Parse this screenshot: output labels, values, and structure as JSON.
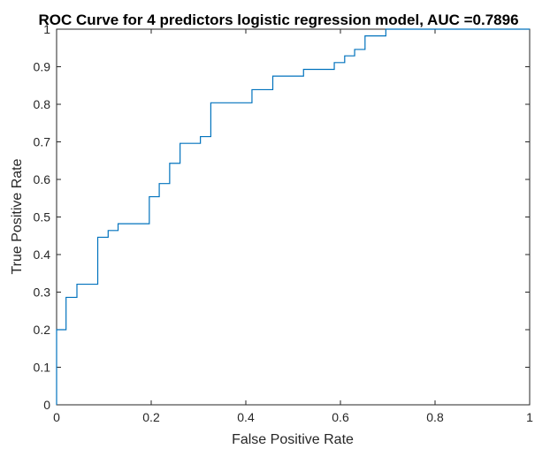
{
  "chart_data": {
    "type": "line",
    "title": "ROC Curve for 4 predictors logistic regression model, AUC =0.7896",
    "xlabel": "False Positive Rate",
    "ylabel": "True Positive Rate",
    "xlim": [
      0,
      1
    ],
    "ylim": [
      0,
      1
    ],
    "x_ticks": [
      "0",
      "0.2",
      "0.4",
      "0.6",
      "0.8",
      "1"
    ],
    "y_ticks": [
      "0",
      "0.1",
      "0.2",
      "0.3",
      "0.4",
      "0.5",
      "0.6",
      "0.7",
      "0.8",
      "0.9",
      "1"
    ],
    "grid": false,
    "series": [
      {
        "color": "#0072bd",
        "x": [
          0,
          0,
          0.02,
          0.02,
          0.043,
          0.043,
          0.087,
          0.087,
          0.109,
          0.109,
          0.13,
          0.13,
          0.196,
          0.196,
          0.217,
          0.217,
          0.239,
          0.239,
          0.261,
          0.261,
          0.304,
          0.304,
          0.326,
          0.326,
          0.413,
          0.413,
          0.457,
          0.457,
          0.522,
          0.522,
          0.587,
          0.587,
          0.609,
          0.609,
          0.63,
          0.63,
          0.652,
          0.652,
          0.696,
          0.696,
          1
        ],
        "y": [
          0,
          0.2,
          0.2,
          0.286,
          0.286,
          0.321,
          0.321,
          0.446,
          0.446,
          0.464,
          0.464,
          0.482,
          0.482,
          0.554,
          0.554,
          0.589,
          0.589,
          0.643,
          0.643,
          0.696,
          0.696,
          0.714,
          0.714,
          0.804,
          0.804,
          0.839,
          0.839,
          0.875,
          0.875,
          0.893,
          0.893,
          0.911,
          0.911,
          0.929,
          0.929,
          0.946,
          0.946,
          0.982,
          0.982,
          1,
          1
        ]
      }
    ]
  }
}
